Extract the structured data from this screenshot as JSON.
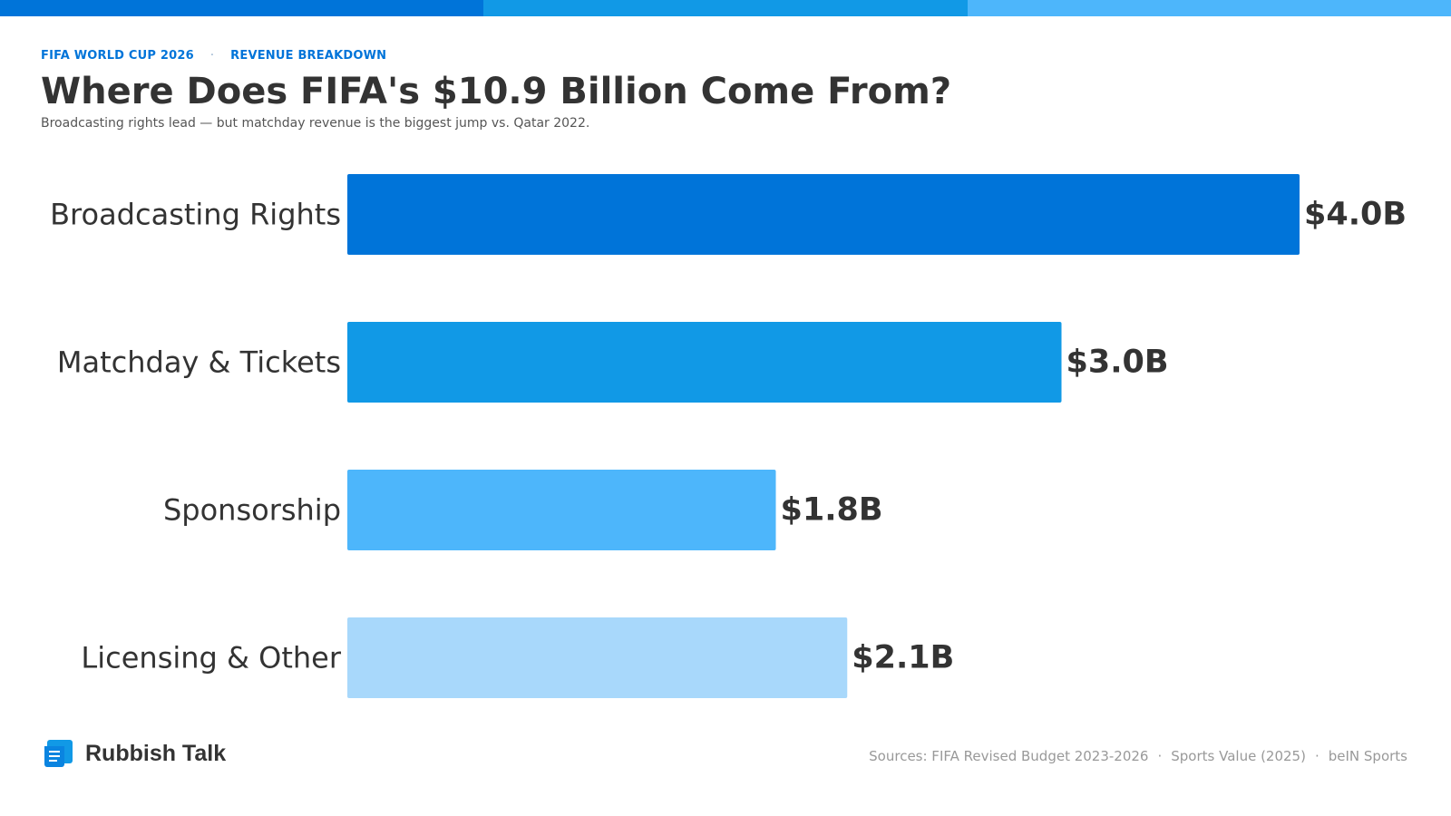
{
  "header": {
    "kicker_left": "FIFA WORLD CUP 2026",
    "kicker_separator": "·",
    "kicker_right": "REVENUE BREAKDOWN",
    "title": "Where Does FIFA's $10.9 Billion Come From?",
    "subtitle": "Broadcasting rights lead — but matchday revenue is the biggest jump vs. Qatar 2022."
  },
  "top_bar_colors": [
    "#0074d9",
    "#1199e6",
    "#4db6fb"
  ],
  "chart_data": {
    "type": "bar",
    "orientation": "horizontal",
    "categories": [
      "Broadcasting Rights",
      "Matchday & Tickets",
      "Sponsorship",
      "Licensing & Other"
    ],
    "values": [
      4.0,
      3.0,
      1.8,
      2.1
    ],
    "value_labels": [
      "$4.0B",
      "$3.0B",
      "$1.8B",
      "$2.1B"
    ],
    "colors": [
      "#0074d9",
      "#1199e6",
      "#4db6fb",
      "#a8d8fb"
    ],
    "xlim": [
      0,
      4.0
    ],
    "grid": false,
    "legend": "none"
  },
  "footer": {
    "brand_icon": "scroll-doc-icon",
    "brand_name": "Rubbish Talk",
    "sources": [
      "Sources: FIFA Revised Budget 2023-2026",
      "Sports Value (2025)",
      "beIN Sports"
    ],
    "sources_separator": "·"
  }
}
